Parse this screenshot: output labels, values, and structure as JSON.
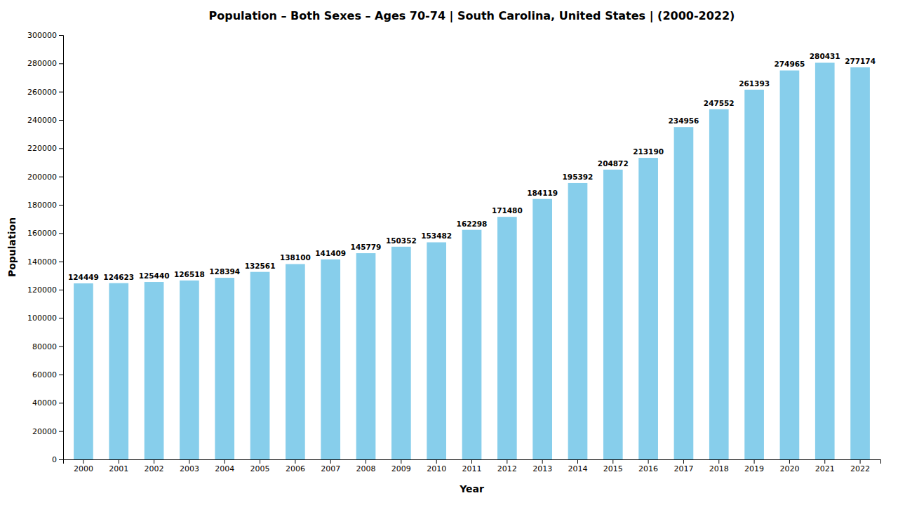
{
  "chart_data": {
    "type": "bar",
    "title": "Population – Both Sexes – Ages 70-74 | South Carolina, United States |  (2000-2022)",
    "xlabel": "Year",
    "ylabel": "Population",
    "categories": [
      "2000",
      "2001",
      "2002",
      "2003",
      "2004",
      "2005",
      "2006",
      "2007",
      "2008",
      "2009",
      "2010",
      "2011",
      "2012",
      "2013",
      "2014",
      "2015",
      "2016",
      "2017",
      "2018",
      "2019",
      "2020",
      "2021",
      "2022"
    ],
    "values": [
      124449,
      124623,
      125440,
      126518,
      128394,
      132561,
      138100,
      141409,
      145779,
      150352,
      153482,
      162298,
      171480,
      184119,
      195392,
      204872,
      213190,
      234956,
      247552,
      261393,
      274965,
      280431,
      277174
    ],
    "color": "#87CEEB",
    "ylim": [
      0,
      300000
    ],
    "yticks": [
      0,
      20000,
      40000,
      60000,
      80000,
      100000,
      120000,
      140000,
      160000,
      180000,
      200000,
      220000,
      240000,
      260000,
      280000,
      300000
    ],
    "grid": false,
    "data_labels": true
  }
}
